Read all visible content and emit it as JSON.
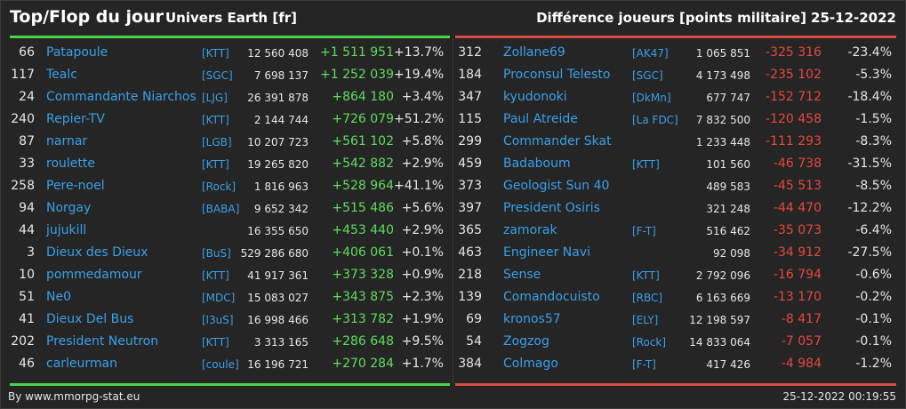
{
  "header": {
    "title": "Top/Flop du jour",
    "subtitle": "Univers Earth [fr]",
    "metric": "Différence joueurs [points militaire]",
    "date": "25-12-2022"
  },
  "colors": {
    "gain": "#5fdc5f",
    "loss": "#e8473d",
    "link": "#3aa0e8"
  },
  "top": [
    {
      "rank": "66",
      "name": "Patapoule",
      "ally": "[KTT]",
      "points": "12 560 408",
      "diff": "+1 511 951",
      "pct": "+13.7%"
    },
    {
      "rank": "117",
      "name": "Tealc",
      "ally": "[SGC]",
      "points": "7 698 137",
      "diff": "+1 252 039",
      "pct": "+19.4%"
    },
    {
      "rank": "24",
      "name": "Commandante Niarchos",
      "ally": "[LJG]",
      "points": "26 391 878",
      "diff": "+864 180",
      "pct": "+3.4%"
    },
    {
      "rank": "240",
      "name": "Repier-TV",
      "ally": "[KTT]",
      "points": "2 144 744",
      "diff": "+726 079",
      "pct": "+51.2%"
    },
    {
      "rank": "87",
      "name": "narnar",
      "ally": "[LGB]",
      "points": "10 207 723",
      "diff": "+561 102",
      "pct": "+5.8%"
    },
    {
      "rank": "33",
      "name": "roulette",
      "ally": "[KTT]",
      "points": "19 265 820",
      "diff": "+542 882",
      "pct": "+2.9%"
    },
    {
      "rank": "258",
      "name": "Pere-noel",
      "ally": "[Rock]",
      "points": "1 816 963",
      "diff": "+528 964",
      "pct": "+41.1%"
    },
    {
      "rank": "94",
      "name": "Norgay",
      "ally": "[BABA]",
      "points": "9 652 342",
      "diff": "+515 486",
      "pct": "+5.6%"
    },
    {
      "rank": "44",
      "name": "jujukill",
      "ally": "",
      "points": "16 355 650",
      "diff": "+453 440",
      "pct": "+2.9%"
    },
    {
      "rank": "3",
      "name": "Dieux des Dieux",
      "ally": "[BuS]",
      "points": "529 286 680",
      "diff": "+406 061",
      "pct": "+0.1%"
    },
    {
      "rank": "10",
      "name": "pommedamour",
      "ally": "[KTT]",
      "points": "41 917 361",
      "diff": "+373 328",
      "pct": "+0.9%"
    },
    {
      "rank": "51",
      "name": "Ne0",
      "ally": "[MDC]",
      "points": "15 083 027",
      "diff": "+343 875",
      "pct": "+2.3%"
    },
    {
      "rank": "41",
      "name": "Dieux Del Bus",
      "ally": "[l3uS]",
      "points": "16 998 466",
      "diff": "+313 782",
      "pct": "+1.9%"
    },
    {
      "rank": "202",
      "name": "President Neutron",
      "ally": "[KTT]",
      "points": "3 313 165",
      "diff": "+286 648",
      "pct": "+9.5%"
    },
    {
      "rank": "46",
      "name": "carleurman",
      "ally": "[coule]",
      "points": "16 196 721",
      "diff": "+270 284",
      "pct": "+1.7%"
    }
  ],
  "flop": [
    {
      "rank": "312",
      "name": "Zollane69",
      "ally": "[AK47]",
      "points": "1 065 851",
      "diff": "-325 316",
      "pct": "-23.4%"
    },
    {
      "rank": "184",
      "name": "Proconsul Telesto",
      "ally": "[SGC]",
      "points": "4 173 498",
      "diff": "-235 102",
      "pct": "-5.3%"
    },
    {
      "rank": "347",
      "name": "kyudonoki",
      "ally": "[DkMn]",
      "points": "677 747",
      "diff": "-152 712",
      "pct": "-18.4%"
    },
    {
      "rank": "115",
      "name": "Paul Atreide",
      "ally": "[La FDC]",
      "points": "7 832 500",
      "diff": "-120 458",
      "pct": "-1.5%"
    },
    {
      "rank": "299",
      "name": "Commander Skat",
      "ally": "",
      "points": "1 233 448",
      "diff": "-111 293",
      "pct": "-8.3%"
    },
    {
      "rank": "459",
      "name": "Badaboum",
      "ally": "[KTT]",
      "points": "101 560",
      "diff": "-46 738",
      "pct": "-31.5%"
    },
    {
      "rank": "373",
      "name": "Geologist Sun 40",
      "ally": "",
      "points": "489 583",
      "diff": "-45 513",
      "pct": "-8.5%"
    },
    {
      "rank": "397",
      "name": "President Osiris",
      "ally": "",
      "points": "321 248",
      "diff": "-44 470",
      "pct": "-12.2%"
    },
    {
      "rank": "365",
      "name": "zamorak",
      "ally": "[F-T]",
      "points": "516 462",
      "diff": "-35 073",
      "pct": "-6.4%"
    },
    {
      "rank": "463",
      "name": "Engineer Navi",
      "ally": "",
      "points": "92 098",
      "diff": "-34 912",
      "pct": "-27.5%"
    },
    {
      "rank": "218",
      "name": "Sense",
      "ally": "[KTT]",
      "points": "2 792 096",
      "diff": "-16 794",
      "pct": "-0.6%"
    },
    {
      "rank": "139",
      "name": "Comandocuisto",
      "ally": "[RBC]",
      "points": "6 163 669",
      "diff": "-13 170",
      "pct": "-0.2%"
    },
    {
      "rank": "69",
      "name": "kronos57",
      "ally": "[ELY]",
      "points": "12 198 597",
      "diff": "-8 417",
      "pct": "-0.1%"
    },
    {
      "rank": "54",
      "name": "Zogzog",
      "ally": "[Rock]",
      "points": "14 833 064",
      "diff": "-7 057",
      "pct": "-0.1%"
    },
    {
      "rank": "384",
      "name": "Colmago",
      "ally": "[F-T]",
      "points": "417 426",
      "diff": "-4 984",
      "pct": "-1.2%"
    }
  ],
  "footer": {
    "credit": "By www.mmorpg-stat.eu",
    "timestamp": "25-12-2022 00:19:55"
  }
}
